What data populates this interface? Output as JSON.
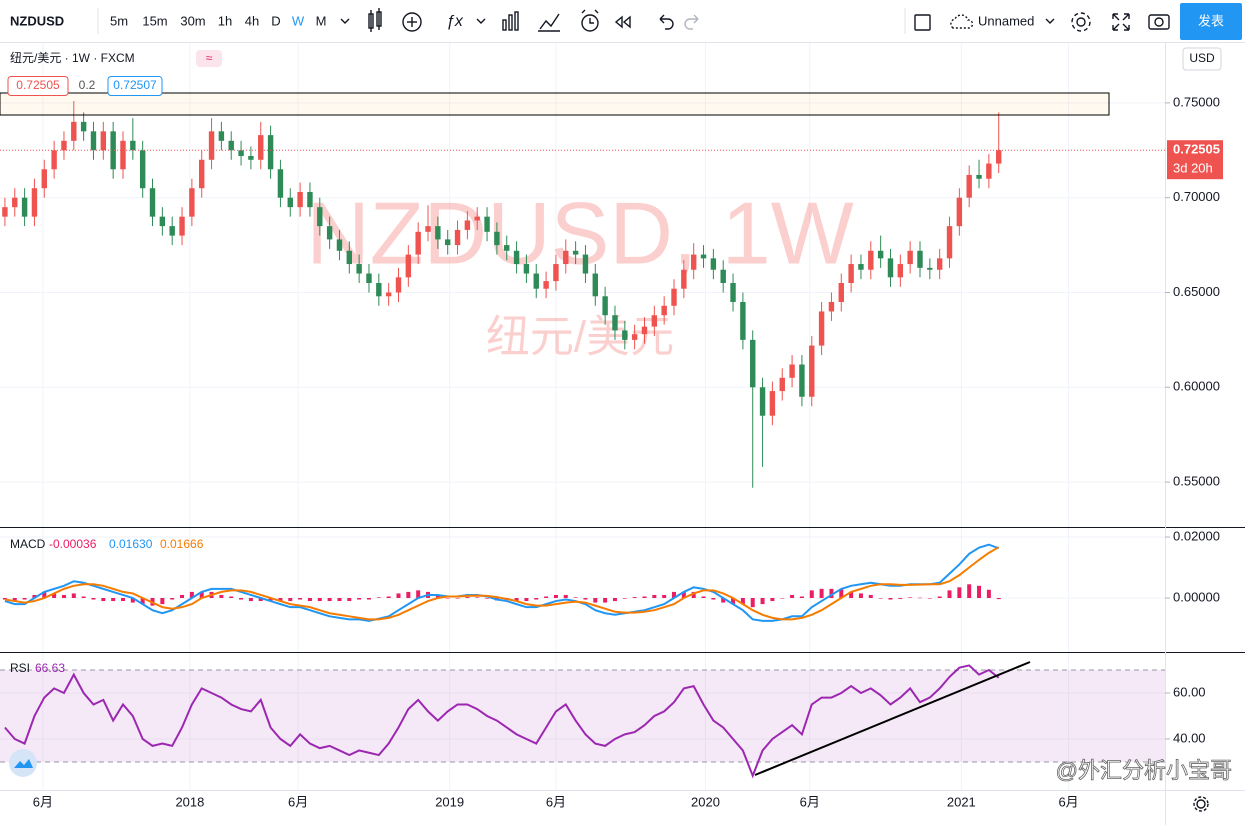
{
  "toolbar": {
    "symbol": "NZDUSD",
    "intervals": [
      "5m",
      "15m",
      "30m",
      "1h",
      "4h",
      "D",
      "W",
      "M"
    ],
    "active": "W",
    "layout_name": "Unnamed",
    "publish": "发表"
  },
  "footer": {
    "watermark": "@外汇分析小宝哥"
  },
  "chart_data": [
    {
      "type": "candlestick",
      "title": "纽元/美元 · 1W · FXCM",
      "watermark": "NZDUSD, 1W",
      "watermark_sub": "纽元/美元",
      "quote": {
        "bid": 0.72505,
        "spread": 0.2,
        "ask": 0.72507
      },
      "countdown": "3d 20h",
      "currency": "USD",
      "up_color": "#ef5350",
      "down_color": "#2e8b57",
      "open": [
        0.69,
        0.695,
        0.7,
        0.69,
        0.705,
        0.715,
        0.725,
        0.73,
        0.74,
        0.735,
        0.725,
        0.735,
        0.715,
        0.73,
        0.725,
        0.705,
        0.69,
        0.685,
        0.68,
        0.69,
        0.705,
        0.72,
        0.735,
        0.73,
        0.725,
        0.722,
        0.72,
        0.733,
        0.715,
        0.7,
        0.695,
        0.703,
        0.695,
        0.685,
        0.678,
        0.672,
        0.665,
        0.66,
        0.655,
        0.648,
        0.65,
        0.658,
        0.67,
        0.682,
        0.685,
        0.678,
        0.675,
        0.683,
        0.688,
        0.69,
        0.682,
        0.675,
        0.672,
        0.665,
        0.66,
        0.652,
        0.656,
        0.665,
        0.672,
        0.67,
        0.66,
        0.648,
        0.638,
        0.63,
        0.625,
        0.628,
        0.632,
        0.638,
        0.643,
        0.652,
        0.662,
        0.67,
        0.668,
        0.662,
        0.655,
        0.645,
        0.625,
        0.6,
        0.585,
        0.598,
        0.605,
        0.612,
        0.595,
        0.622,
        0.64,
        0.645,
        0.655,
        0.665,
        0.662,
        0.672,
        0.668,
        0.658,
        0.665,
        0.672,
        0.663,
        0.662,
        0.668,
        0.685,
        0.7,
        0.712,
        0.71,
        0.718
      ],
      "high": [
        0.7,
        0.705,
        0.705,
        0.71,
        0.72,
        0.73,
        0.735,
        0.751,
        0.745,
        0.74,
        0.74,
        0.74,
        0.735,
        0.742,
        0.73,
        0.71,
        0.695,
        0.69,
        0.695,
        0.71,
        0.725,
        0.742,
        0.74,
        0.735,
        0.73,
        0.727,
        0.74,
        0.738,
        0.72,
        0.705,
        0.708,
        0.708,
        0.7,
        0.69,
        0.683,
        0.677,
        0.67,
        0.665,
        0.66,
        0.655,
        0.663,
        0.675,
        0.687,
        0.696,
        0.69,
        0.683,
        0.688,
        0.693,
        0.695,
        0.695,
        0.687,
        0.68,
        0.677,
        0.67,
        0.665,
        0.661,
        0.67,
        0.678,
        0.677,
        0.675,
        0.665,
        0.653,
        0.643,
        0.635,
        0.633,
        0.637,
        0.643,
        0.648,
        0.657,
        0.667,
        0.676,
        0.675,
        0.673,
        0.667,
        0.66,
        0.65,
        0.63,
        0.605,
        0.603,
        0.61,
        0.617,
        0.617,
        0.627,
        0.645,
        0.65,
        0.66,
        0.67,
        0.67,
        0.677,
        0.68,
        0.673,
        0.67,
        0.677,
        0.677,
        0.668,
        0.673,
        0.69,
        0.705,
        0.717,
        0.72,
        0.723,
        0.745
      ],
      "low": [
        0.685,
        0.69,
        0.685,
        0.685,
        0.7,
        0.71,
        0.72,
        0.725,
        0.73,
        0.72,
        0.72,
        0.71,
        0.71,
        0.72,
        0.7,
        0.685,
        0.68,
        0.675,
        0.675,
        0.685,
        0.7,
        0.715,
        0.725,
        0.72,
        0.717,
        0.715,
        0.715,
        0.71,
        0.695,
        0.69,
        0.69,
        0.69,
        0.68,
        0.673,
        0.667,
        0.66,
        0.655,
        0.65,
        0.643,
        0.643,
        0.645,
        0.653,
        0.665,
        0.677,
        0.673,
        0.67,
        0.67,
        0.678,
        0.683,
        0.677,
        0.67,
        0.667,
        0.66,
        0.655,
        0.647,
        0.647,
        0.651,
        0.66,
        0.665,
        0.655,
        0.643,
        0.633,
        0.625,
        0.62,
        0.62,
        0.623,
        0.627,
        0.633,
        0.638,
        0.647,
        0.657,
        0.663,
        0.657,
        0.65,
        0.64,
        0.62,
        0.547,
        0.558,
        0.58,
        0.593,
        0.6,
        0.59,
        0.59,
        0.617,
        0.635,
        0.64,
        0.65,
        0.657,
        0.657,
        0.663,
        0.653,
        0.653,
        0.66,
        0.658,
        0.657,
        0.657,
        0.663,
        0.68,
        0.695,
        0.705,
        0.705,
        0.713
      ],
      "close": [
        0.695,
        0.7,
        0.69,
        0.705,
        0.715,
        0.725,
        0.73,
        0.74,
        0.735,
        0.725,
        0.735,
        0.715,
        0.73,
        0.725,
        0.705,
        0.69,
        0.685,
        0.68,
        0.69,
        0.705,
        0.72,
        0.735,
        0.73,
        0.725,
        0.722,
        0.72,
        0.733,
        0.715,
        0.7,
        0.695,
        0.703,
        0.695,
        0.685,
        0.678,
        0.672,
        0.665,
        0.66,
        0.655,
        0.648,
        0.65,
        0.658,
        0.67,
        0.682,
        0.685,
        0.678,
        0.675,
        0.683,
        0.688,
        0.69,
        0.682,
        0.675,
        0.672,
        0.665,
        0.66,
        0.652,
        0.656,
        0.665,
        0.672,
        0.67,
        0.66,
        0.648,
        0.638,
        0.63,
        0.625,
        0.628,
        0.632,
        0.638,
        0.643,
        0.652,
        0.662,
        0.67,
        0.668,
        0.662,
        0.655,
        0.645,
        0.625,
        0.6,
        0.585,
        0.598,
        0.605,
        0.612,
        0.595,
        0.622,
        0.64,
        0.645,
        0.655,
        0.665,
        0.662,
        0.672,
        0.668,
        0.658,
        0.665,
        0.672,
        0.663,
        0.662,
        0.668,
        0.685,
        0.7,
        0.712,
        0.71,
        0.718,
        0.72505
      ],
      "xlim": [
        -0.5,
        117.9
      ],
      "xticks": [
        {
          "value": 3.86,
          "label": "6月"
        },
        {
          "value": 18.8,
          "label": "2018"
        },
        {
          "value": 29.8,
          "label": "6月"
        },
        {
          "value": 45.2,
          "label": "2019"
        },
        {
          "value": 56.0,
          "label": "6月"
        },
        {
          "value": 71.2,
          "label": "2020"
        },
        {
          "value": 81.8,
          "label": "6月"
        },
        {
          "value": 97.2,
          "label": "2021"
        },
        {
          "value": 108.1,
          "label": "6月"
        }
      ],
      "ylim": [
        0.5263,
        0.7816
      ],
      "yticks": [
        {
          "value": 0.55,
          "label": "0.55000"
        },
        {
          "value": 0.6,
          "label": "0.60000"
        },
        {
          "value": 0.65,
          "label": "0.65000"
        },
        {
          "value": 0.7,
          "label": "0.70000"
        },
        {
          "value": 0.75,
          "label": "0.75000"
        }
      ],
      "grid": true
    },
    {
      "type": "macd",
      "name": "MACD",
      "legend_values": [
        "-0.00036",
        "0.01630",
        "0.01666"
      ],
      "histogram_color": "#e91e63",
      "macd_color": "#2196f3",
      "signal_color": "#f57c00",
      "histogram": [
        -0.0005,
        -0.001,
        -0.0005,
        0.001,
        0.002,
        0.0015,
        0.001,
        0.0015,
        0.0005,
        -0.0005,
        -0.001,
        -0.001,
        -0.001,
        -0.0015,
        -0.002,
        -0.0025,
        -0.002,
        -0.0005,
        0.001,
        0.002,
        0.002,
        0.002,
        0.001,
        0.0005,
        -0.0005,
        -0.001,
        -0.001,
        -0.001,
        -0.001,
        -0.001,
        -0.0005,
        -0.001,
        -0.001,
        -0.001,
        -0.001,
        -0.001,
        -0.0005,
        -0.0005,
        0.0002,
        0.0005,
        0.0015,
        0.002,
        0.0025,
        0.002,
        0.001,
        0.0,
        0.0,
        0.0003,
        0.0002,
        -0.0002,
        -0.0008,
        -0.0007,
        -0.001,
        -0.001,
        -0.0005,
        0.0005,
        0.001,
        0.001,
        0.0002,
        -0.0005,
        -0.0015,
        -0.0015,
        -0.001,
        -0.0002,
        0.0003,
        0.0005,
        0.001,
        0.001,
        0.002,
        0.002,
        0.002,
        0.0005,
        -0.0005,
        -0.0015,
        -0.002,
        -0.002,
        -0.003,
        -0.002,
        -0.001,
        0.0,
        0.001,
        0.0005,
        0.0025,
        0.003,
        0.003,
        0.003,
        0.002,
        0.0015,
        0.001,
        0.0,
        -0.0005,
        -0.0003,
        0.0002,
        0.0001,
        0.0,
        0.0005,
        0.0025,
        0.0035,
        0.0045,
        0.004,
        0.0027,
        -0.00036
      ],
      "macd": [
        -0.001,
        -0.002,
        -0.002,
        0.0,
        0.002,
        0.003,
        0.004,
        0.0055,
        0.005,
        0.004,
        0.003,
        0.002,
        0.001,
        0.0,
        -0.002,
        -0.004,
        -0.005,
        -0.004,
        -0.002,
        0.0,
        0.002,
        0.003,
        0.003,
        0.003,
        0.002,
        0.001,
        0.0,
        -0.001,
        -0.002,
        -0.003,
        -0.003,
        -0.004,
        -0.005,
        -0.006,
        -0.0065,
        -0.007,
        -0.007,
        -0.0075,
        -0.0068,
        -0.006,
        -0.004,
        -0.002,
        0.0,
        0.001,
        0.001,
        0.0005,
        0.0005,
        0.001,
        0.001,
        0.0005,
        -0.0005,
        -0.001,
        -0.002,
        -0.003,
        -0.003,
        -0.002,
        -0.001,
        -0.0005,
        -0.001,
        -0.002,
        -0.004,
        -0.005,
        -0.0055,
        -0.005,
        -0.0045,
        -0.004,
        -0.003,
        -0.002,
        0.0,
        0.002,
        0.0035,
        0.003,
        0.002,
        0.0,
        -0.002,
        -0.004,
        -0.007,
        -0.0075,
        -0.0075,
        -0.007,
        -0.006,
        -0.006,
        -0.003,
        -0.001,
        0.001,
        0.003,
        0.004,
        0.0045,
        0.005,
        0.0045,
        0.004,
        0.004,
        0.0045,
        0.0045,
        0.0045,
        0.005,
        0.008,
        0.011,
        0.0145,
        0.0165,
        0.0175,
        0.0163
      ],
      "signal": [
        -0.0005,
        -0.001,
        -0.0015,
        -0.001,
        0.0,
        0.0015,
        0.003,
        0.004,
        0.0045,
        0.0045,
        0.004,
        0.003,
        0.002,
        0.0015,
        0.0,
        -0.0015,
        -0.003,
        -0.0035,
        -0.003,
        -0.002,
        0.0,
        0.001,
        0.002,
        0.0025,
        0.0025,
        0.002,
        0.001,
        0.0,
        -0.001,
        -0.002,
        -0.0025,
        -0.003,
        -0.004,
        -0.005,
        -0.0055,
        -0.006,
        -0.0065,
        -0.007,
        -0.007,
        -0.0065,
        -0.0055,
        -0.004,
        -0.0025,
        -0.001,
        0.0,
        0.0005,
        0.0005,
        0.0007,
        0.0008,
        0.0007,
        0.0003,
        -0.0003,
        -0.001,
        -0.002,
        -0.0025,
        -0.0025,
        -0.002,
        -0.0015,
        -0.0012,
        -0.0015,
        -0.0025,
        -0.0035,
        -0.0045,
        -0.0048,
        -0.0048,
        -0.0045,
        -0.004,
        -0.003,
        -0.002,
        0.0,
        0.0015,
        0.0025,
        0.0025,
        0.0015,
        0.0,
        -0.002,
        -0.004,
        -0.0055,
        -0.0065,
        -0.007,
        -0.007,
        -0.0065,
        -0.0055,
        -0.004,
        -0.002,
        0.0,
        0.002,
        0.003,
        0.004,
        0.0045,
        0.0045,
        0.0043,
        0.0043,
        0.0044,
        0.0045,
        0.0045,
        0.0055,
        0.0075,
        0.01,
        0.0125,
        0.0148,
        0.01666
      ],
      "ylim": [
        -0.0177,
        0.02295
      ],
      "yticks": [
        {
          "value": 0,
          "label": "0.00000"
        },
        {
          "value": 0.02,
          "label": "0.02000"
        }
      ]
    },
    {
      "type": "rsi",
      "name": "RSI",
      "color": "#9c27b0",
      "band": [
        30,
        70
      ],
      "values": [
        45,
        40,
        38,
        50,
        58,
        62,
        60,
        68,
        60,
        55,
        57,
        48,
        55,
        50,
        40,
        37,
        38,
        37,
        45,
        55,
        62,
        60,
        58,
        55,
        53,
        52,
        57,
        45,
        40,
        37,
        42,
        38,
        36,
        37,
        35,
        33,
        35,
        34,
        33,
        38,
        45,
        53,
        57,
        52,
        48,
        52,
        55,
        55,
        53,
        50,
        48,
        45,
        42,
        40,
        38,
        45,
        52,
        55,
        48,
        42,
        38,
        37,
        40,
        42,
        43,
        46,
        50,
        52,
        56,
        62,
        63,
        55,
        48,
        45,
        40,
        35,
        24,
        35,
        40,
        43,
        46,
        42,
        55,
        58,
        58,
        60,
        63,
        60,
        62,
        59,
        55,
        58,
        62,
        56,
        58,
        62,
        67,
        71,
        72,
        68,
        70,
        66.63
      ],
      "ylim": [
        17.8,
        77.4
      ],
      "yticks": [
        {
          "value": 40,
          "label": "40.00"
        },
        {
          "value": 60,
          "label": "60.00"
        }
      ]
    }
  ]
}
